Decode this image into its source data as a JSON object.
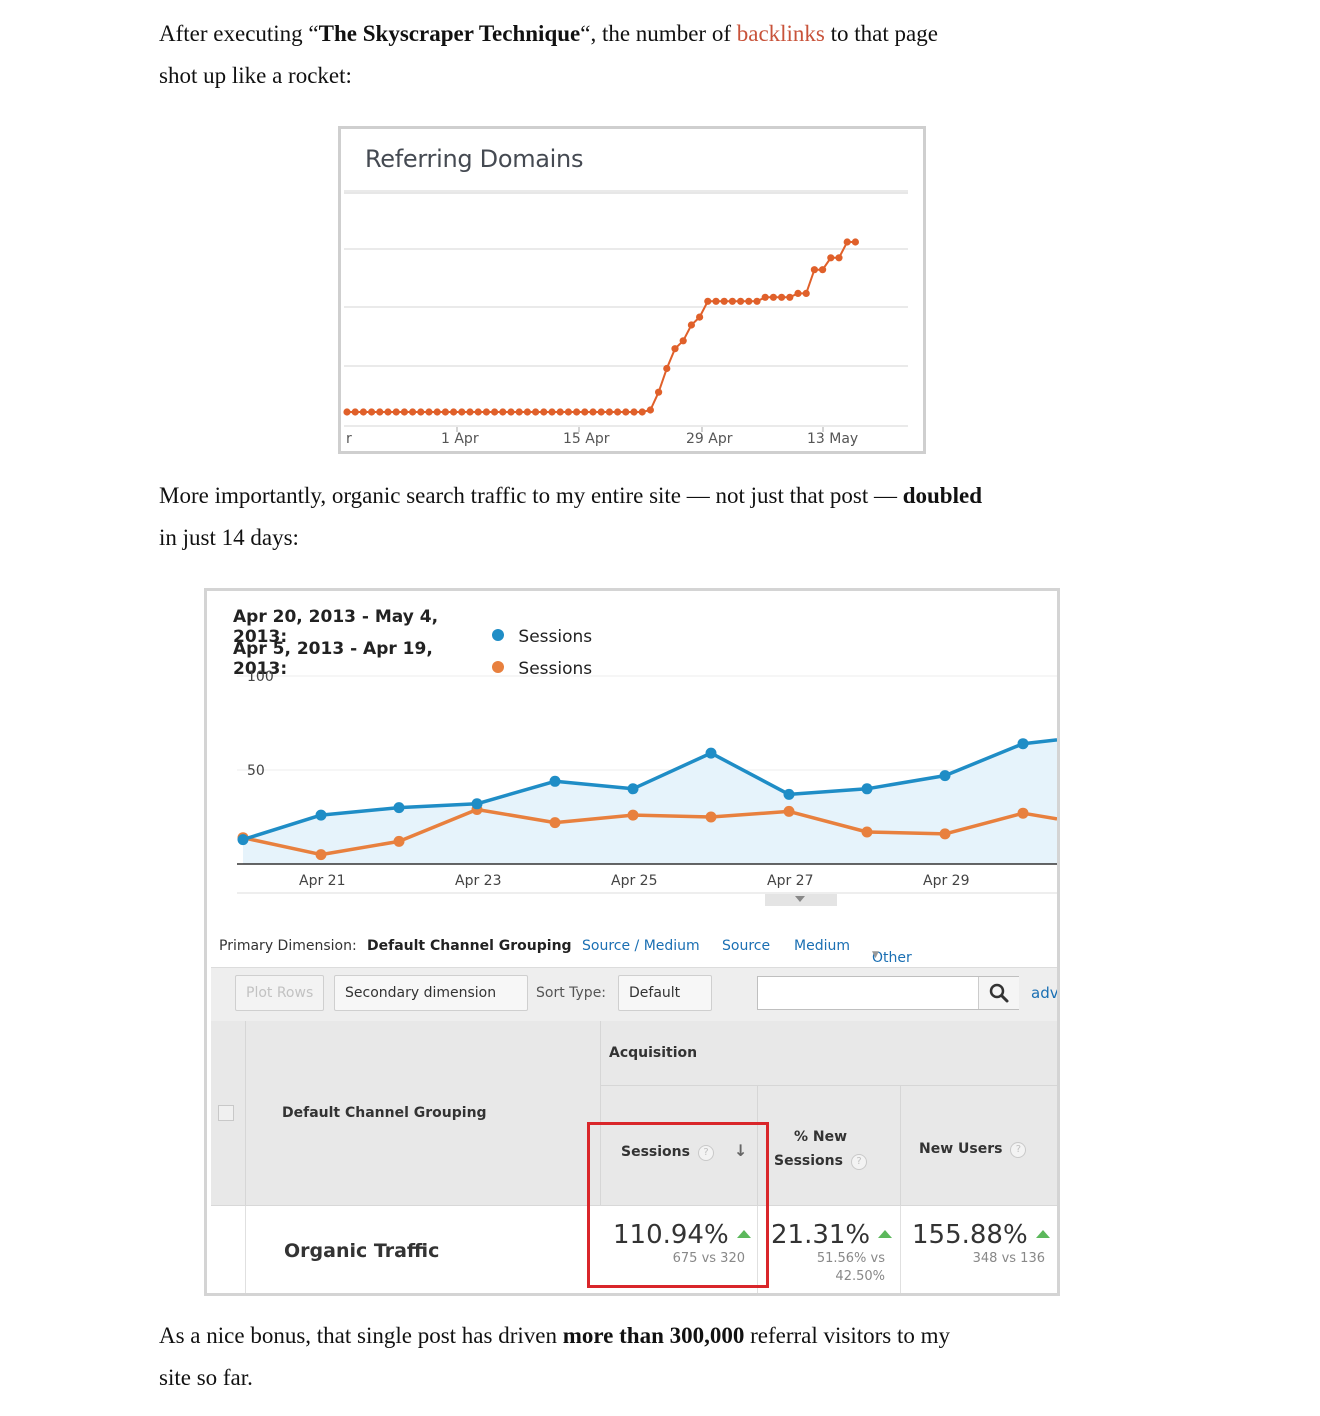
{
  "article": {
    "p1": {
      "before": "After executing “",
      "bold": "The Skyscraper Technique",
      "mid": "“, the number of ",
      "link": "backlinks",
      "after_line1": " to that page",
      "line2": "shot up like a rocket:"
    },
    "p2": {
      "line1": "More importantly, organic search traffic to my entire site — not just that post — ",
      "bold": "doubled",
      "line2": "in just 14 days:"
    },
    "p3": {
      "before": "As a nice bonus, that single post has driven ",
      "bold": "more than 300,000",
      "after_line1": " referral visitors to my",
      "line2": "site so far."
    }
  },
  "referring_domains": {
    "title": "Referring Domains",
    "x_ticks": [
      "r",
      "1 Apr",
      "15 Apr",
      "29 Apr",
      "13 May"
    ],
    "color": "#e0602a"
  },
  "analytics": {
    "legend": [
      {
        "range": "Apr 20, 2013 - May 4, 2013:",
        "series": "Sessions",
        "color": "#1f8dc6"
      },
      {
        "range": "Apr 5, 2013 - Apr 19, 2013:",
        "series": "Sessions",
        "color": "#e8803e"
      }
    ],
    "y_ticks": [
      "100",
      "50"
    ],
    "x_ticks": [
      "Apr 21",
      "Apr 23",
      "Apr 25",
      "Apr 27",
      "Apr 29"
    ],
    "primary_dimension_label": "Primary Dimension:",
    "primary_dimension_active": "Default Channel Grouping",
    "dimension_links": [
      "Source / Medium",
      "Source",
      "Medium",
      "Other"
    ],
    "toolbar": {
      "plot_rows": "Plot Rows",
      "secondary_dimension": "Secondary dimension",
      "sort_type_label": "Sort Type:",
      "sort_type_value": "Default",
      "search_placeholder": "",
      "advanced": "adv"
    },
    "table": {
      "group_header": "Acquisition",
      "dimension_header": "Default Channel Grouping",
      "col_sessions": "Sessions",
      "col_new_sessions_1": "% New",
      "col_new_sessions_2": "Sessions",
      "col_new_users": "New Users",
      "qmark": "?",
      "row": {
        "label": "Organic Traffic",
        "sessions_change": "110.94%",
        "sessions_detail": "675 vs 320",
        "new_sessions_change": "21.31%",
        "new_sessions_detail_1": "51.56% vs",
        "new_sessions_detail_2": "42.50%",
        "new_users_change": "155.88%",
        "new_users_detail": "348 vs 136"
      }
    }
  },
  "chart_data": [
    {
      "type": "line",
      "title": "Referring Domains",
      "x_ticks": [
        "1 Apr",
        "15 Apr",
        "29 Apr",
        "13 May"
      ],
      "note": "step-like series, flat then rising",
      "series": [
        {
          "values": [
            10,
            10,
            10,
            10,
            10,
            10,
            10,
            10,
            10,
            10,
            10,
            10,
            10,
            10,
            10,
            10,
            10,
            10,
            10,
            10,
            10,
            10,
            10,
            10,
            10,
            10,
            10,
            10,
            10,
            10,
            10,
            10,
            10,
            10,
            10,
            10,
            10,
            11,
            20,
            32,
            42,
            46,
            54,
            58,
            66,
            66,
            66,
            66,
            66,
            66,
            66,
            68,
            68,
            68,
            68,
            70,
            70,
            82,
            82,
            88,
            88,
            96,
            96
          ]
        }
      ],
      "grid": true
    },
    {
      "type": "area",
      "x": [
        "Apr 20",
        "Apr 21",
        "Apr 22",
        "Apr 23",
        "Apr 24",
        "Apr 25",
        "Apr 26",
        "Apr 27",
        "Apr 28",
        "Apr 29",
        "Apr 30",
        "May 1"
      ],
      "ylim": [
        0,
        100
      ],
      "y_ticks": [
        50,
        100
      ],
      "series": [
        {
          "name": "Apr 20, 2013 - May 4, 2013: Sessions",
          "values": [
            13,
            26,
            30,
            32,
            44,
            40,
            59,
            37,
            40,
            47,
            64,
            66
          ]
        },
        {
          "name": "Apr 5, 2013 - Apr 19, 2013: Sessions",
          "values": [
            14,
            5,
            12,
            29,
            22,
            26,
            25,
            28,
            17,
            16,
            27,
            24
          ]
        }
      ],
      "grid": true
    }
  ]
}
